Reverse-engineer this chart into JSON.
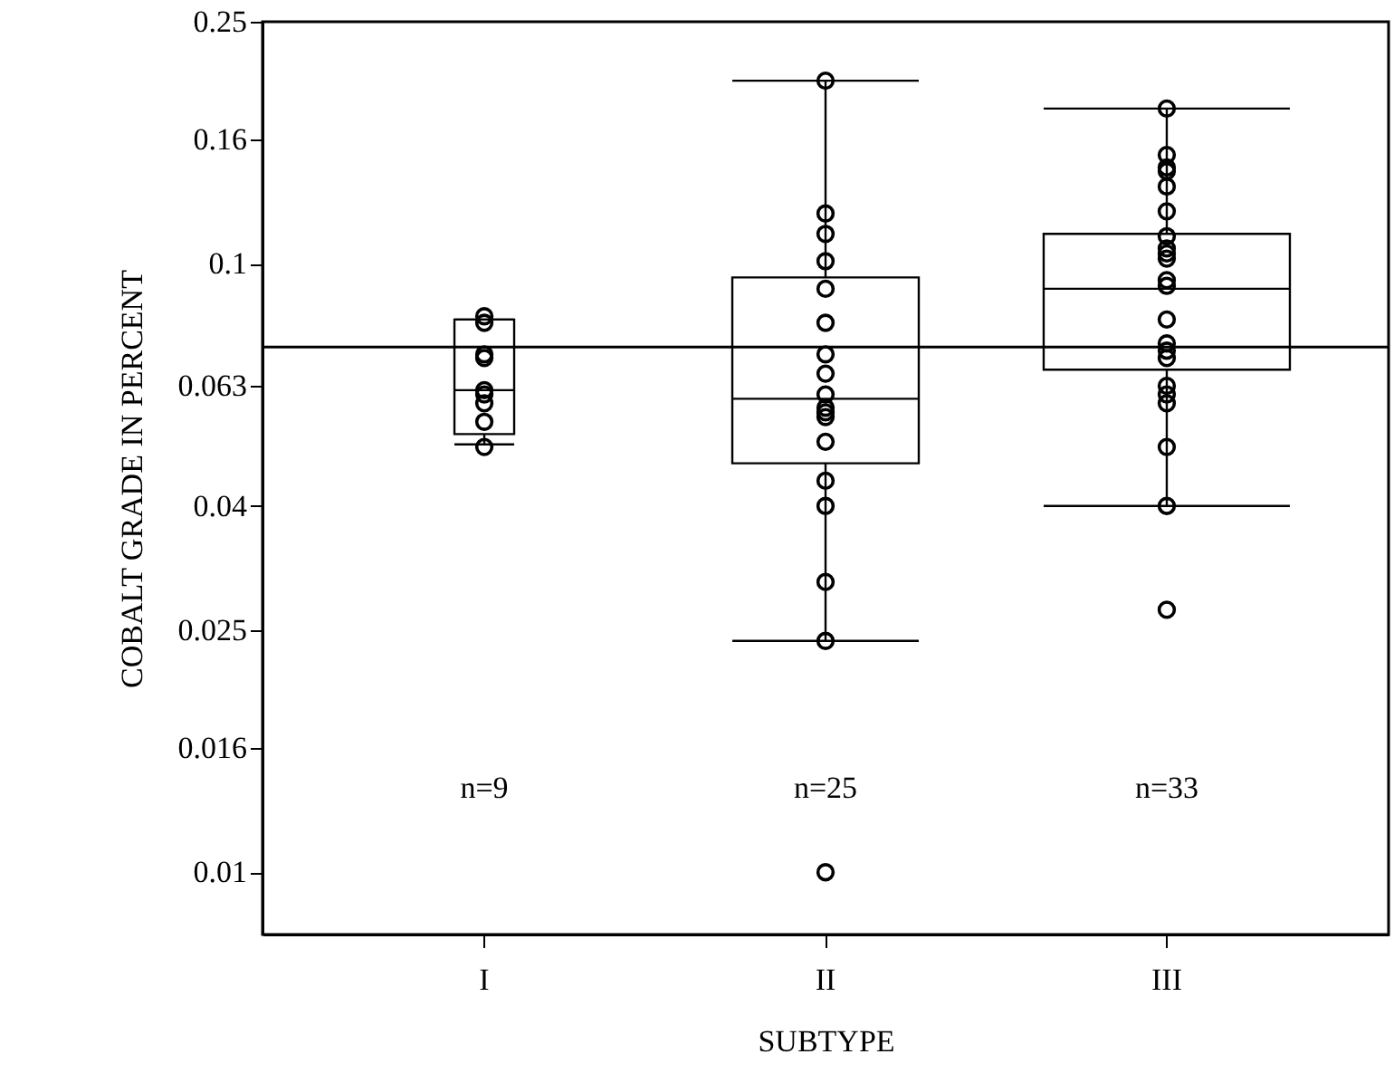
{
  "chart_data": {
    "type": "box",
    "xlabel": "SUBTYPE",
    "ylabel": "COBALT GRADE IN PERCENT",
    "categories": [
      "I",
      "II",
      "III"
    ],
    "boxes": [
      {
        "low": 0.0505,
        "q1": 0.0525,
        "median": 0.062,
        "q3": 0.081,
        "high": 0.081
      },
      {
        "low": 0.024,
        "q1": 0.047,
        "median": 0.06,
        "q3": 0.095,
        "high": 0.2
      },
      {
        "low": 0.04,
        "q1": 0.067,
        "median": 0.091,
        "q3": 0.112,
        "high": 0.18
      }
    ],
    "series": [
      {
        "type": "scatter",
        "color": "#000000",
        "x": [
          "I",
          "I",
          "I",
          "I",
          "I",
          "I",
          "I",
          "I",
          "I",
          "II",
          "II",
          "II",
          "II",
          "II",
          "II",
          "II",
          "II",
          "II",
          "II",
          "II",
          "II",
          "II",
          "II",
          "II",
          "II",
          "II",
          "II",
          "III",
          "III",
          "III",
          "III",
          "III",
          "III",
          "III",
          "III",
          "III",
          "III",
          "III",
          "III",
          "III",
          "III",
          "III",
          "III",
          "III",
          "III",
          "III",
          "III",
          "III",
          "III"
        ],
        "values": [
          0.082,
          0.08,
          0.071,
          0.07,
          0.062,
          0.061,
          0.059,
          0.055,
          0.05,
          0.2,
          0.121,
          0.112,
          0.101,
          0.091,
          0.08,
          0.071,
          0.066,
          0.061,
          0.058,
          0.057,
          0.056,
          0.051,
          0.044,
          0.04,
          0.03,
          0.024,
          0.01,
          0.18,
          0.151,
          0.144,
          0.142,
          0.134,
          0.122,
          0.111,
          0.106,
          0.104,
          0.102,
          0.094,
          0.092,
          0.081,
          0.074,
          0.072,
          0.07,
          0.063,
          0.061,
          0.059,
          0.05,
          0.04,
          0.027
        ]
      }
    ],
    "marker": "circle",
    "log": "y",
    "ylim": [
      0.0079,
      0.25
    ],
    "yticks": [
      0.01,
      0.016,
      0.025,
      0.04,
      0.063,
      0.1,
      0.16,
      0.25
    ],
    "grid": false,
    "ref_lines": [
      {
        "axis": "y",
        "value": 0.073,
        "color": "#000000"
      }
    ],
    "annotations": [
      "n=9",
      "n=25",
      "n=33"
    ]
  }
}
